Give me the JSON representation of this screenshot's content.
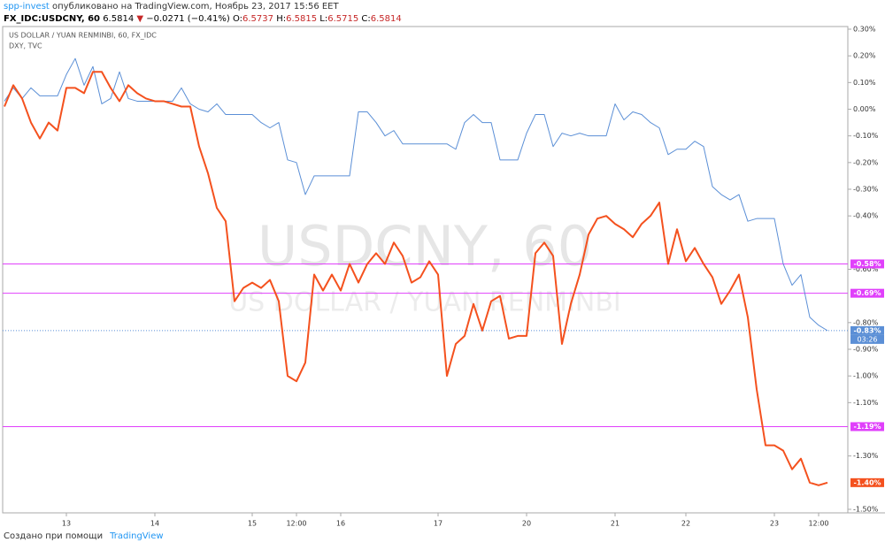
{
  "chart_data": {
    "type": "line",
    "header_line1": [
      {
        "text": "spp-invest",
        "color": "#2196f3"
      },
      {
        "text": " опубликовано на TradingView.com, Ноябрь 23, 2017 15:56 EET",
        "color": "#333333"
      }
    ],
    "header_line2": [
      {
        "text": "FX_IDC:USDCNY, 60",
        "color": "#000000",
        "bold": true
      },
      {
        "text": " 6.5814 ",
        "color": "#000000"
      },
      {
        "text": "▼",
        "color": "#c62828"
      },
      {
        "text": " −0.0271 (−0.41%) ",
        "color": "#000000"
      },
      {
        "text": "O:",
        "color": "#000000"
      },
      {
        "text": "6.5737",
        "color": "#c62828"
      },
      {
        "text": " H:",
        "color": "#000000"
      },
      {
        "text": "6.5815",
        "color": "#c62828"
      },
      {
        "text": " L:",
        "color": "#000000"
      },
      {
        "text": "6.5715",
        "color": "#c62828"
      },
      {
        "text": " C:",
        "color": "#000000"
      },
      {
        "text": "6.5814",
        "color": "#c62828"
      }
    ],
    "watermark": [
      "USDCNY, 60",
      "US DOLLAR / YUAN RENMINBI"
    ],
    "categories": [
      null,
      null,
      null,
      null,
      null,
      null,
      null,
      "13",
      null,
      null,
      null,
      null,
      null,
      null,
      null,
      null,
      null,
      "14",
      null,
      null,
      null,
      null,
      null,
      null,
      null,
      null,
      null,
      null,
      "15",
      null,
      null,
      null,
      null,
      "12:00",
      null,
      null,
      null,
      null,
      "16",
      null,
      null,
      null,
      null,
      null,
      null,
      null,
      null,
      null,
      null,
      "17",
      null,
      null,
      null,
      null,
      null,
      null,
      null,
      null,
      null,
      "20",
      null,
      null,
      null,
      null,
      null,
      null,
      null,
      null,
      null,
      "21",
      null,
      null,
      null,
      null,
      null,
      null,
      null,
      "22",
      null,
      null,
      null,
      null,
      null,
      null,
      null,
      null,
      null,
      "23",
      null,
      null,
      null,
      null,
      "12:00",
      null
    ],
    "series": [
      {
        "name": "US DOLLAR / YUAN RENMINBI, 60, FX_IDC",
        "color": "#f4511e",
        "width": 2,
        "price_label": "-1.40%",
        "values": [
          0.01,
          0.09,
          0.04,
          -0.05,
          -0.11,
          -0.05,
          -0.08,
          0.08,
          0.08,
          0.06,
          0.14,
          0.14,
          0.08,
          0.03,
          0.09,
          0.06,
          0.04,
          0.03,
          0.03,
          0.02,
          0.01,
          0.01,
          -0.14,
          -0.24,
          -0.37,
          -0.42,
          -0.72,
          -0.67,
          -0.65,
          -0.67,
          -0.64,
          -0.72,
          -1.0,
          -1.02,
          -0.95,
          -0.62,
          -0.68,
          -0.62,
          -0.68,
          -0.58,
          -0.65,
          -0.58,
          -0.54,
          -0.58,
          -0.5,
          -0.55,
          -0.65,
          -0.63,
          -0.57,
          -0.62,
          -1.0,
          -0.88,
          -0.85,
          -0.73,
          -0.83,
          -0.72,
          -0.7,
          -0.86,
          -0.85,
          -0.85,
          -0.54,
          -0.5,
          -0.55,
          -0.88,
          -0.73,
          -0.62,
          -0.47,
          -0.41,
          -0.4,
          -0.43,
          -0.45,
          -0.48,
          -0.43,
          -0.4,
          -0.35,
          -0.58,
          -0.45,
          -0.57,
          -0.52,
          -0.58,
          -0.63,
          -0.73,
          -0.68,
          -0.62,
          -0.78,
          -1.05,
          -1.26,
          -1.26,
          -1.28,
          -1.35,
          -1.31,
          -1.4,
          -1.41,
          -1.4
        ]
      },
      {
        "name": "DXY, TVC",
        "color": "#5b8fd6",
        "width": 1,
        "price_label": "-0.83%",
        "countdown": "03:26",
        "dotted_last": true,
        "values": [
          0.03,
          0.08,
          0.04,
          0.08,
          0.05,
          0.05,
          0.05,
          0.13,
          0.19,
          0.09,
          0.16,
          0.02,
          0.04,
          0.14,
          0.04,
          0.03,
          0.03,
          0.03,
          0.03,
          0.03,
          0.08,
          0.02,
          0.0,
          -0.01,
          0.02,
          -0.02,
          -0.02,
          -0.02,
          -0.02,
          -0.05,
          -0.07,
          -0.05,
          -0.19,
          -0.2,
          -0.32,
          -0.25,
          -0.25,
          -0.25,
          -0.25,
          -0.25,
          -0.01,
          -0.01,
          -0.05,
          -0.1,
          -0.08,
          -0.13,
          -0.13,
          -0.13,
          -0.13,
          -0.13,
          -0.13,
          -0.15,
          -0.05,
          -0.02,
          -0.05,
          -0.05,
          -0.19,
          -0.19,
          -0.19,
          -0.09,
          -0.02,
          -0.02,
          -0.14,
          -0.09,
          -0.1,
          -0.09,
          -0.1,
          -0.1,
          -0.1,
          0.02,
          -0.04,
          -0.01,
          -0.02,
          -0.05,
          -0.07,
          -0.17,
          -0.15,
          -0.15,
          -0.12,
          -0.14,
          -0.29,
          -0.32,
          -0.34,
          -0.32,
          -0.42,
          -0.41,
          -0.41,
          -0.41,
          -0.58,
          -0.66,
          -0.62,
          -0.78,
          -0.81,
          -0.83
        ]
      }
    ],
    "levels": [
      {
        "value": -0.58,
        "label": "-0.58%"
      },
      {
        "value": -0.69,
        "label": "-0.69%"
      },
      {
        "value": -1.19,
        "label": "-1.19%"
      }
    ],
    "level_color": "#e040fb",
    "ylim": [
      -1.5,
      0.3
    ],
    "yticks": [
      {
        "value": 0.3,
        "label": "0.30%"
      },
      {
        "value": 0.2,
        "label": "0.20%"
      },
      {
        "value": 0.1,
        "label": "0.10%"
      },
      {
        "value": 0,
        "label": "0.00%"
      },
      {
        "value": -0.1,
        "label": "-0.10%"
      },
      {
        "value": -0.2,
        "label": "-0.20%"
      },
      {
        "value": -0.3,
        "label": "-0.30%"
      },
      {
        "value": -0.4,
        "label": "-0.40%"
      },
      {
        "value": -0.6,
        "label": "-0.60%"
      },
      {
        "value": -0.8,
        "label": "-0.80%"
      },
      {
        "value": -0.9,
        "label": "-0.90%"
      },
      {
        "value": -1,
        "label": "-1.00%"
      },
      {
        "value": -1.1,
        "label": "-1.10%"
      },
      {
        "value": -1.3,
        "label": "-1.30%"
      },
      {
        "value": -1.5,
        "label": "-1.50%"
      }
    ],
    "footer": {
      "text": "Создано при помощи",
      "link": "TradingView"
    }
  }
}
